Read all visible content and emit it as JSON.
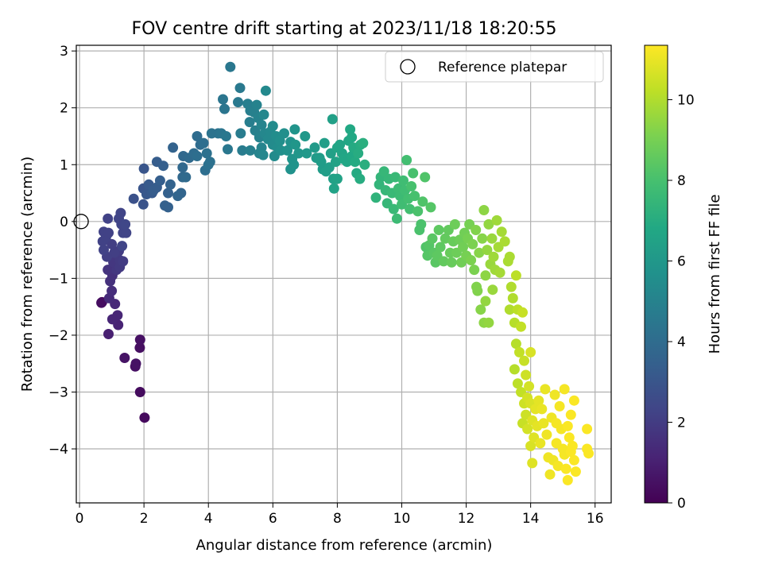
{
  "chart_data": {
    "type": "scatter",
    "title": "FOV centre drift starting at 2023/11/18 18:20:55",
    "xlabel": "Angular distance from reference (arcmin)",
    "ylabel": "Rotation from reference (arcmin)",
    "xlim": [
      -0.1,
      16.5
    ],
    "ylim": [
      -4.95,
      3.1
    ],
    "xticks": [
      0,
      2,
      4,
      6,
      8,
      10,
      12,
      14,
      16
    ],
    "yticks": [
      3,
      2,
      1,
      0,
      -1,
      -2,
      -3,
      -4
    ],
    "grid": true,
    "legend": {
      "position": "top-right",
      "entries": [
        "Reference platepar"
      ]
    },
    "reference_point": {
      "x": 0.05,
      "y": 0.0
    },
    "colorbar": {
      "label": "Hours from first FF file",
      "min": 0,
      "max": 11.35,
      "ticks": [
        0,
        2,
        4,
        6,
        8,
        10
      ],
      "colormap": "viridis"
    },
    "points": [
      [
        0.7,
        -1.42,
        0.2
      ],
      [
        0.68,
        -1.43,
        0.4
      ],
      [
        2.02,
        -3.45,
        0.3
      ],
      [
        1.88,
        -3.0,
        0.35
      ],
      [
        1.87,
        -2.22,
        0.45
      ],
      [
        1.88,
        -2.08,
        0.5
      ],
      [
        1.73,
        -2.55,
        0.5
      ],
      [
        1.75,
        -2.5,
        0.55
      ],
      [
        1.4,
        -2.4,
        0.6
      ],
      [
        0.9,
        -1.98,
        1.0
      ],
      [
        1.2,
        -1.82,
        1.1
      ],
      [
        1.18,
        -1.65,
        1.2
      ],
      [
        1.02,
        -1.72,
        1.2
      ],
      [
        1.1,
        -1.45,
        1.3
      ],
      [
        0.92,
        -1.35,
        1.4
      ],
      [
        1.0,
        -1.22,
        1.5
      ],
      [
        0.95,
        -1.05,
        1.6
      ],
      [
        1.02,
        -0.95,
        1.6
      ],
      [
        0.88,
        -0.85,
        1.7
      ],
      [
        1.0,
        -0.83,
        1.7
      ],
      [
        1.15,
        -0.85,
        1.8
      ],
      [
        1.05,
        -0.72,
        1.8
      ],
      [
        1.25,
        -0.8,
        1.9
      ],
      [
        1.25,
        -0.68,
        1.9
      ],
      [
        1.35,
        -0.7,
        2.0
      ],
      [
        1.22,
        -0.52,
        2.0
      ],
      [
        1.08,
        -0.55,
        2.1
      ],
      [
        1.0,
        -0.4,
        2.1
      ],
      [
        0.85,
        -0.62,
        2.1
      ],
      [
        0.75,
        -0.5,
        2.2
      ],
      [
        0.72,
        -0.35,
        2.2
      ],
      [
        0.82,
        -0.28,
        2.2
      ],
      [
        0.75,
        -0.18,
        2.2
      ],
      [
        0.9,
        -0.2,
        2.2
      ],
      [
        0.88,
        0.05,
        2.2
      ],
      [
        1.32,
        -0.43,
        2.3
      ],
      [
        1.35,
        -0.2,
        2.3
      ],
      [
        1.45,
        -0.2,
        2.3
      ],
      [
        1.3,
        -0.05,
        2.3
      ],
      [
        1.22,
        0.05,
        2.3
      ],
      [
        1.28,
        0.15,
        2.3
      ],
      [
        1.42,
        -0.05,
        2.4
      ],
      [
        1.68,
        0.4,
        2.8
      ],
      [
        1.98,
        0.3,
        2.9
      ],
      [
        1.98,
        0.58,
        3.0
      ],
      [
        2.0,
        0.93,
        3.0
      ],
      [
        2.08,
        0.48,
        3.1
      ],
      [
        2.18,
        0.58,
        3.1
      ],
      [
        2.25,
        0.5,
        3.2
      ],
      [
        2.15,
        0.65,
        3.2
      ],
      [
        2.3,
        0.55,
        3.3
      ],
      [
        2.4,
        0.6,
        3.3
      ],
      [
        2.4,
        1.05,
        3.3
      ],
      [
        2.5,
        0.72,
        3.4
      ],
      [
        2.6,
        0.98,
        3.4
      ],
      [
        2.75,
        0.5,
        3.5
      ],
      [
        2.65,
        0.28,
        3.5
      ],
      [
        2.75,
        0.25,
        3.5
      ],
      [
        2.82,
        0.65,
        3.6
      ],
      [
        2.9,
        1.3,
        3.6
      ],
      [
        3.05,
        0.45,
        3.7
      ],
      [
        3.15,
        0.5,
        3.7
      ],
      [
        3.2,
        0.78,
        3.8
      ],
      [
        3.2,
        0.95,
        3.8
      ],
      [
        3.22,
        1.15,
        3.8
      ],
      [
        3.3,
        0.78,
        3.9
      ],
      [
        3.4,
        1.12,
        3.9
      ],
      [
        3.55,
        1.2,
        4.0
      ],
      [
        3.65,
        1.5,
        4.0
      ],
      [
        3.75,
        1.35,
        4.0
      ],
      [
        3.65,
        1.15,
        4.1
      ],
      [
        3.85,
        1.38,
        4.1
      ],
      [
        3.9,
        0.9,
        4.1
      ],
      [
        4.0,
        1.0,
        4.2
      ],
      [
        3.95,
        1.2,
        4.2
      ],
      [
        4.05,
        1.05,
        4.2
      ],
      [
        4.1,
        1.55,
        4.3
      ],
      [
        4.3,
        1.55,
        4.3
      ],
      [
        4.4,
        1.55,
        4.4
      ],
      [
        4.45,
        2.15,
        4.4
      ],
      [
        4.5,
        1.98,
        4.4
      ],
      [
        4.55,
        1.5,
        4.5
      ],
      [
        4.6,
        1.27,
        4.5
      ],
      [
        4.68,
        2.72,
        4.5
      ],
      [
        4.92,
        2.1,
        4.6
      ],
      [
        4.98,
        2.35,
        4.6
      ],
      [
        5.0,
        1.55,
        4.7
      ],
      [
        5.05,
        1.25,
        4.7
      ],
      [
        5.22,
        2.07,
        4.8
      ],
      [
        5.3,
        1.95,
        4.8
      ],
      [
        5.28,
        1.75,
        4.8
      ],
      [
        5.3,
        1.25,
        4.9
      ],
      [
        5.45,
        1.6,
        4.9
      ],
      [
        5.42,
        1.92,
        4.9
      ],
      [
        5.5,
        2.05,
        5.0
      ],
      [
        5.55,
        1.82,
        5.0
      ],
      [
        5.58,
        1.48,
        5.0
      ],
      [
        5.65,
        1.3,
        5.1
      ],
      [
        5.58,
        1.2,
        5.1
      ],
      [
        5.65,
        1.7,
        5.1
      ],
      [
        5.72,
        1.88,
        5.2
      ],
      [
        5.75,
        1.55,
        5.2
      ],
      [
        5.7,
        1.17,
        5.2
      ],
      [
        5.78,
        2.3,
        5.3
      ],
      [
        5.85,
        1.45,
        5.3
      ],
      [
        5.92,
        1.58,
        5.3
      ],
      [
        6.0,
        1.68,
        5.4
      ],
      [
        6.0,
        1.35,
        5.4
      ],
      [
        6.05,
        1.15,
        5.4
      ],
      [
        6.1,
        1.5,
        5.5
      ],
      [
        6.15,
        1.3,
        5.5
      ],
      [
        6.22,
        1.42,
        5.6
      ],
      [
        6.25,
        1.25,
        5.6
      ],
      [
        6.35,
        1.55,
        5.6
      ],
      [
        6.45,
        1.25,
        5.7
      ],
      [
        6.55,
        1.4,
        5.7
      ],
      [
        6.55,
        0.92,
        5.7
      ],
      [
        6.6,
        1.1,
        5.8
      ],
      [
        6.65,
        1.0,
        5.8
      ],
      [
        6.68,
        1.62,
        5.8
      ],
      [
        6.7,
        1.35,
        5.9
      ],
      [
        6.8,
        1.2,
        5.9
      ],
      [
        7.0,
        1.5,
        6.0
      ],
      [
        7.05,
        1.2,
        6.0
      ],
      [
        7.3,
        1.3,
        6.1
      ],
      [
        7.35,
        1.12,
        6.1
      ],
      [
        7.45,
        1.12,
        6.2
      ],
      [
        7.5,
        1.05,
        6.2
      ],
      [
        7.55,
        0.92,
        6.2
      ],
      [
        7.6,
        1.38,
        6.3
      ],
      [
        7.65,
        0.88,
        6.3
      ],
      [
        7.75,
        0.95,
        6.3
      ],
      [
        7.8,
        1.2,
        6.4
      ],
      [
        7.85,
        1.8,
        6.4
      ],
      [
        7.88,
        0.75,
        6.4
      ],
      [
        7.95,
        1.05,
        6.5
      ],
      [
        7.9,
        0.58,
        6.5
      ],
      [
        8.0,
        0.75,
        6.5
      ],
      [
        8.0,
        1.3,
        6.6
      ],
      [
        8.08,
        1.35,
        6.6
      ],
      [
        8.15,
        1.2,
        6.6
      ],
      [
        8.2,
        1.1,
        6.7
      ],
      [
        8.3,
        1.05,
        6.7
      ],
      [
        8.35,
        1.42,
        6.7
      ],
      [
        8.4,
        1.62,
        6.8
      ],
      [
        8.45,
        1.48,
        6.8
      ],
      [
        8.45,
        1.15,
        6.8
      ],
      [
        8.5,
        1.3,
        6.9
      ],
      [
        8.55,
        1.05,
        6.9
      ],
      [
        8.6,
        0.85,
        6.9
      ],
      [
        8.65,
        1.2,
        7.0
      ],
      [
        8.7,
        0.75,
        7.0
      ],
      [
        8.72,
        1.35,
        7.0
      ],
      [
        8.8,
        1.38,
        7.1
      ],
      [
        8.85,
        1.0,
        7.1
      ],
      [
        9.2,
        0.42,
        7.3
      ],
      [
        9.3,
        0.65,
        7.4
      ],
      [
        9.35,
        0.78,
        7.4
      ],
      [
        9.45,
        0.88,
        7.5
      ],
      [
        9.5,
        0.55,
        7.5
      ],
      [
        9.55,
        0.32,
        7.5
      ],
      [
        9.6,
        0.75,
        7.5
      ],
      [
        9.7,
        0.5,
        7.6
      ],
      [
        9.75,
        0.22,
        7.6
      ],
      [
        9.8,
        0.78,
        7.6
      ],
      [
        9.85,
        0.05,
        7.7
      ],
      [
        9.9,
        0.58,
        7.7
      ],
      [
        9.95,
        0.45,
        7.7
      ],
      [
        10.0,
        0.3,
        7.8
      ],
      [
        10.05,
        0.72,
        7.8
      ],
      [
        10.1,
        0.55,
        7.8
      ],
      [
        10.15,
        1.08,
        7.9
      ],
      [
        10.2,
        0.4,
        7.9
      ],
      [
        10.25,
        0.22,
        7.9
      ],
      [
        10.3,
        0.62,
        8.0
      ],
      [
        10.35,
        0.85,
        8.0
      ],
      [
        10.4,
        0.45,
        8.0
      ],
      [
        10.5,
        0.18,
        8.1
      ],
      [
        10.55,
        -0.15,
        8.1
      ],
      [
        10.6,
        -0.05,
        8.1
      ],
      [
        10.65,
        0.35,
        8.2
      ],
      [
        10.72,
        0.78,
        8.2
      ],
      [
        10.75,
        -0.45,
        8.2
      ],
      [
        10.8,
        -0.6,
        8.3
      ],
      [
        10.85,
        -0.42,
        8.3
      ],
      [
        10.9,
        0.25,
        8.3
      ],
      [
        10.95,
        -0.3,
        8.4
      ],
      [
        11.0,
        -0.55,
        8.4
      ],
      [
        11.05,
        -0.72,
        8.4
      ],
      [
        11.1,
        -0.6,
        8.5
      ],
      [
        11.15,
        -0.15,
        8.5
      ],
      [
        11.2,
        -0.45,
        8.5
      ],
      [
        11.3,
        -0.7,
        8.6
      ],
      [
        11.35,
        -0.3,
        8.6
      ],
      [
        11.45,
        -0.15,
        8.6
      ],
      [
        11.5,
        -0.55,
        8.7
      ],
      [
        11.55,
        -0.72,
        8.7
      ],
      [
        11.6,
        -0.35,
        8.7
      ],
      [
        11.65,
        -0.05,
        8.8
      ],
      [
        11.7,
        -0.55,
        8.8
      ],
      [
        11.8,
        -0.32,
        8.8
      ],
      [
        11.85,
        -0.72,
        8.9
      ],
      [
        11.9,
        -0.45,
        8.9
      ],
      [
        11.95,
        -0.2,
        8.9
      ],
      [
        12.0,
        -0.6,
        9.0
      ],
      [
        12.05,
        -0.3,
        9.0
      ],
      [
        12.1,
        -0.05,
        9.0
      ],
      [
        12.15,
        -0.68,
        9.1
      ],
      [
        12.2,
        -0.4,
        9.1
      ],
      [
        12.25,
        -0.85,
        9.1
      ],
      [
        12.3,
        -0.15,
        9.2
      ],
      [
        12.32,
        -1.15,
        9.2
      ],
      [
        12.35,
        -1.22,
        9.2
      ],
      [
        12.4,
        -0.55,
        9.3
      ],
      [
        12.45,
        -1.55,
        9.3
      ],
      [
        12.5,
        -0.3,
        9.3
      ],
      [
        12.55,
        0.2,
        9.4
      ],
      [
        12.55,
        -1.78,
        9.4
      ],
      [
        12.6,
        -0.95,
        9.4
      ],
      [
        12.6,
        -1.4,
        9.5
      ],
      [
        12.65,
        -0.5,
        9.5
      ],
      [
        12.7,
        -0.05,
        9.5
      ],
      [
        12.7,
        -1.78,
        9.5
      ],
      [
        12.75,
        -0.75,
        9.6
      ],
      [
        12.8,
        -0.3,
        9.6
      ],
      [
        12.82,
        -1.2,
        9.6
      ],
      [
        12.85,
        -0.62,
        9.7
      ],
      [
        12.9,
        -0.85,
        9.7
      ],
      [
        12.95,
        0.02,
        9.7
      ],
      [
        13.0,
        -0.45,
        9.8
      ],
      [
        13.05,
        -0.9,
        9.8
      ],
      [
        13.1,
        -0.18,
        9.8
      ],
      [
        13.2,
        -0.35,
        9.9
      ],
      [
        13.3,
        -0.7,
        9.9
      ],
      [
        13.35,
        -0.62,
        9.9
      ],
      [
        13.35,
        -1.55,
        10.0
      ],
      [
        13.4,
        -1.15,
        10.0
      ],
      [
        13.45,
        -1.35,
        10.0
      ],
      [
        13.5,
        -1.78,
        10.1
      ],
      [
        13.5,
        -2.6,
        10.1
      ],
      [
        13.55,
        -2.15,
        10.1
      ],
      [
        13.55,
        -0.95,
        10.2
      ],
      [
        13.6,
        -1.55,
        10.2
      ],
      [
        13.6,
        -2.85,
        10.2
      ],
      [
        13.65,
        -2.3,
        10.3
      ],
      [
        13.7,
        -1.85,
        10.3
      ],
      [
        13.7,
        -3.0,
        10.3
      ],
      [
        13.75,
        -3.55,
        10.4
      ],
      [
        13.75,
        -1.6,
        10.4
      ],
      [
        13.8,
        -2.45,
        10.4
      ],
      [
        13.8,
        -3.2,
        10.5
      ],
      [
        13.85,
        -2.7,
        10.5
      ],
      [
        13.85,
        -3.4,
        10.5
      ],
      [
        13.9,
        -3.1,
        10.6
      ],
      [
        13.9,
        -3.65,
        10.6
      ],
      [
        13.95,
        -2.9,
        10.6
      ],
      [
        14.0,
        -2.3,
        10.7
      ],
      [
        14.0,
        -3.2,
        10.7
      ],
      [
        14.0,
        -3.95,
        10.7
      ],
      [
        14.05,
        -3.5,
        10.8
      ],
      [
        14.05,
        -4.25,
        10.8
      ],
      [
        14.1,
        -3.8,
        10.8
      ],
      [
        14.15,
        -3.3,
        10.9
      ],
      [
        14.2,
        -3.6,
        10.9
      ],
      [
        14.25,
        -3.15,
        10.9
      ],
      [
        14.3,
        -3.9,
        11.0
      ],
      [
        14.35,
        -3.3,
        11.0
      ],
      [
        14.4,
        -3.55,
        11.0
      ],
      [
        14.45,
        -2.95,
        11.0
      ],
      [
        14.5,
        -3.75,
        11.1
      ],
      [
        14.55,
        -4.15,
        11.1
      ],
      [
        14.6,
        -4.45,
        11.1
      ],
      [
        14.65,
        -3.45,
        11.1
      ],
      [
        14.7,
        -4.2,
        11.1
      ],
      [
        14.75,
        -3.05,
        11.1
      ],
      [
        14.8,
        -3.55,
        11.2
      ],
      [
        14.8,
        -3.9,
        11.2
      ],
      [
        14.85,
        -4.3,
        11.2
      ],
      [
        14.9,
        -3.25,
        11.2
      ],
      [
        14.95,
        -3.65,
        11.2
      ],
      [
        15.0,
        -4.0,
        11.2
      ],
      [
        15.05,
        -2.95,
        11.2
      ],
      [
        15.05,
        -4.1,
        11.2
      ],
      [
        15.1,
        -4.35,
        11.3
      ],
      [
        15.15,
        -3.6,
        11.3
      ],
      [
        15.15,
        -4.55,
        11.3
      ],
      [
        15.2,
        -3.8,
        11.3
      ],
      [
        15.25,
        -3.4,
        11.3
      ],
      [
        15.25,
        -4.05,
        11.3
      ],
      [
        15.3,
        -3.95,
        11.3
      ],
      [
        15.35,
        -4.2,
        11.3
      ],
      [
        15.35,
        -3.15,
        11.3
      ],
      [
        15.4,
        -4.4,
        11.3
      ],
      [
        15.75,
        -3.65,
        11.3
      ],
      [
        15.75,
        -4.0,
        11.3
      ],
      [
        15.8,
        -4.08,
        11.3
      ]
    ]
  }
}
